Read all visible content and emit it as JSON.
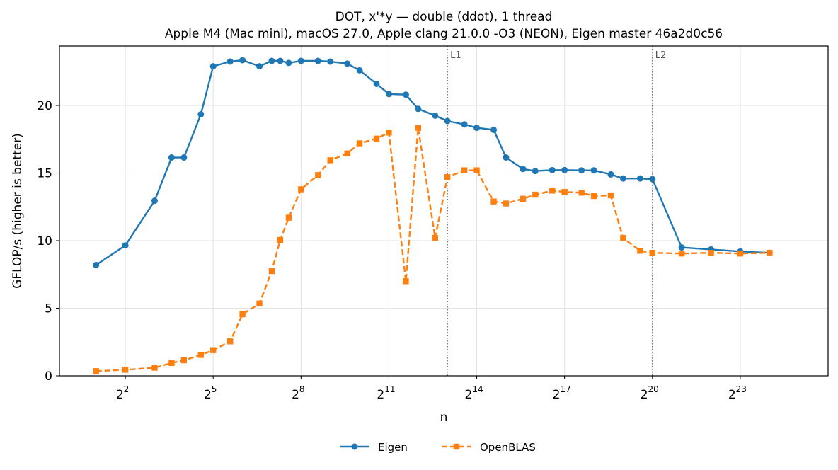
{
  "chart_data": {
    "type": "line",
    "title": "DOT, x'*y — double (ddot), 1 thread",
    "subtitle": "Apple M4 (Mac mini), macOS 27.0, Apple clang 21.0.0 -O3 (NEON), Eigen master 46a2d0c56",
    "xlabel": "n",
    "ylabel": "GFLOP/s (higher is better)",
    "x_scale": "log2",
    "xlim_log2": [
      -0.25,
      26.0
    ],
    "ylim": [
      0,
      24.4
    ],
    "y_ticks": [
      0,
      5,
      10,
      15,
      20
    ],
    "x_ticks": [
      {
        "exp": 2,
        "base": "2",
        "sup": "2"
      },
      {
        "exp": 5,
        "base": "2",
        "sup": "5"
      },
      {
        "exp": 8,
        "base": "2",
        "sup": "8"
      },
      {
        "exp": 11,
        "base": "2",
        "sup": "11"
      },
      {
        "exp": 14,
        "base": "2",
        "sup": "14"
      },
      {
        "exp": 17,
        "base": "2",
        "sup": "17"
      },
      {
        "exp": 20,
        "base": "2",
        "sup": "20"
      },
      {
        "exp": 23,
        "base": "2",
        "sup": "23"
      }
    ],
    "grid": true,
    "legend_position": "bottom-center",
    "reference_lines": [
      {
        "label": "L1",
        "x_log2": 13
      },
      {
        "label": "L2",
        "x_log2": 20
      }
    ],
    "series": [
      {
        "name": "Eigen",
        "color": "#1f77b4",
        "marker": "circle",
        "line_style": "solid",
        "x_log2": [
          1,
          2,
          3,
          3.58,
          4,
          4.58,
          5,
          5.58,
          6,
          6.58,
          7,
          7.29,
          7.58,
          8,
          8.58,
          9,
          9.58,
          10,
          10.58,
          11,
          11.58,
          12,
          12.58,
          13,
          13.58,
          14,
          14.58,
          15,
          15.58,
          16,
          16.58,
          17,
          17.58,
          18,
          18.58,
          19,
          19.58,
          20,
          21,
          22,
          23,
          24
        ],
        "values": [
          8.2,
          9.65,
          12.95,
          16.15,
          16.15,
          19.35,
          22.9,
          23.25,
          23.35,
          22.9,
          23.3,
          23.3,
          23.15,
          23.3,
          23.3,
          23.25,
          23.1,
          22.6,
          21.6,
          20.85,
          20.8,
          19.75,
          19.25,
          18.85,
          18.6,
          18.35,
          18.2,
          16.15,
          15.3,
          15.15,
          15.22,
          15.22,
          15.2,
          15.2,
          14.9,
          14.6,
          14.6,
          14.55,
          9.5,
          9.35,
          9.2,
          9.1
        ]
      },
      {
        "name": "OpenBLAS",
        "color": "#ff7f0e",
        "marker": "square",
        "line_style": "dashed",
        "x_log2": [
          1,
          2,
          3,
          3.58,
          4,
          4.58,
          5,
          5.58,
          6,
          6.58,
          7,
          7.29,
          7.58,
          8,
          8.58,
          9,
          9.58,
          10,
          10.58,
          11,
          11.58,
          12,
          12.58,
          13,
          13.58,
          14,
          14.58,
          15,
          15.58,
          16,
          16.58,
          17,
          17.58,
          18,
          18.58,
          19,
          19.58,
          20,
          21,
          22,
          23,
          24
        ],
        "values": [
          0.35,
          0.45,
          0.6,
          0.95,
          1.15,
          1.55,
          1.9,
          2.55,
          4.55,
          5.35,
          7.75,
          10.05,
          11.7,
          13.8,
          14.85,
          15.95,
          16.45,
          17.2,
          17.55,
          18.0,
          7.0,
          18.35,
          10.2,
          14.7,
          15.2,
          15.2,
          12.9,
          12.75,
          13.1,
          13.4,
          13.7,
          13.6,
          13.55,
          13.3,
          13.35,
          10.2,
          9.25,
          9.1,
          9.05,
          9.1,
          9.05,
          9.1
        ]
      }
    ]
  }
}
